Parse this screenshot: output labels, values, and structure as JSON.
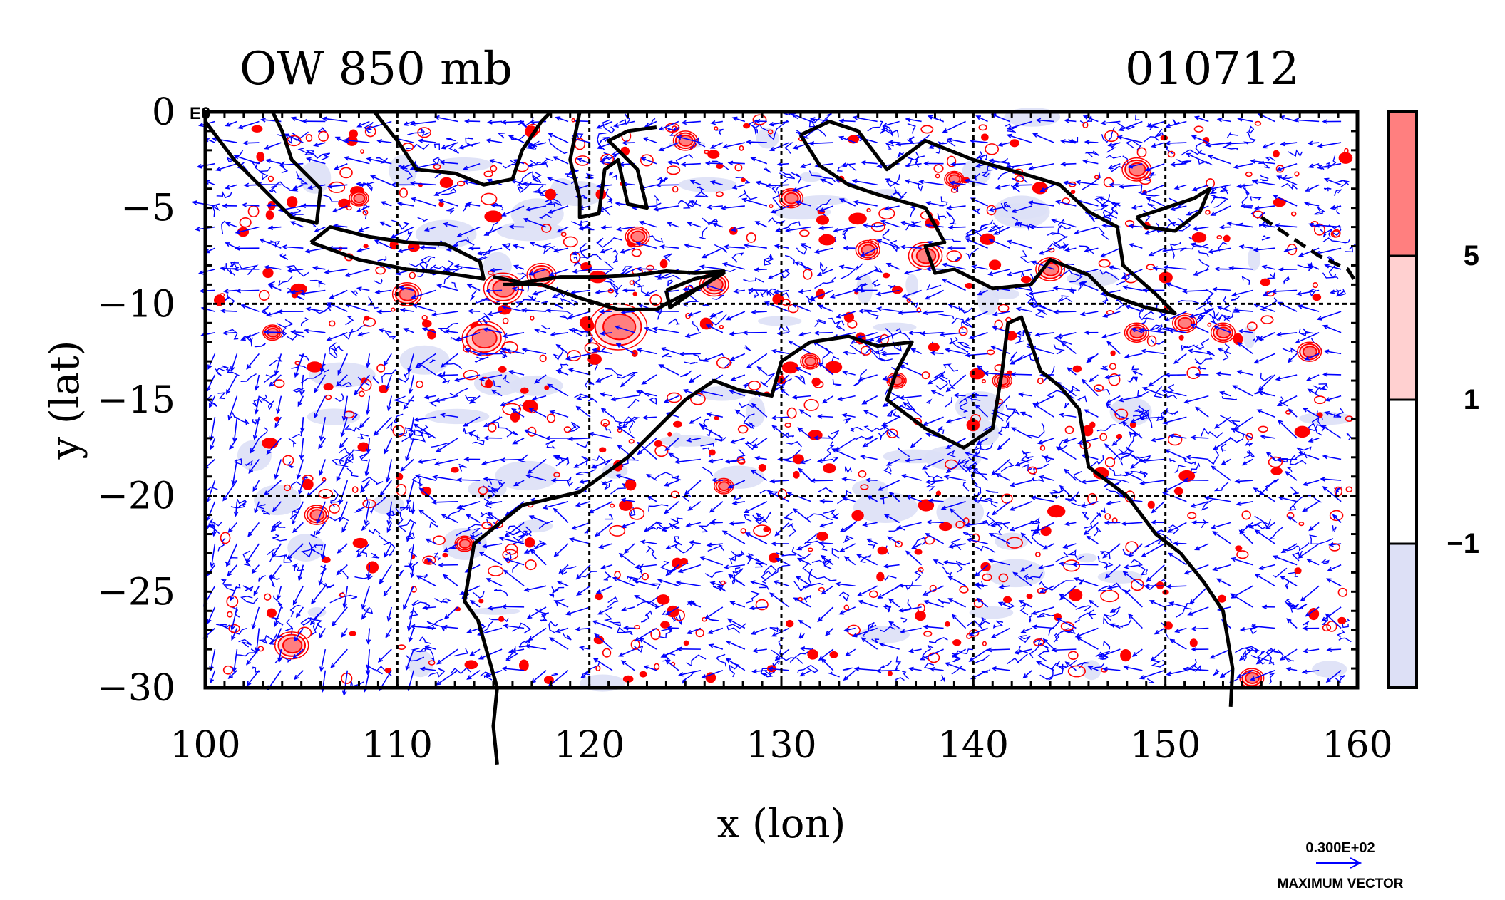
{
  "chart_data": {
    "type": "contour",
    "title_left": "OW 850 mb",
    "title_right": "010712",
    "xlabel": "x (lon)",
    "ylabel": "y (lat)",
    "xlim": [
      100,
      160
    ],
    "ylim": [
      -30,
      0
    ],
    "x_ticks": [
      "100",
      "110",
      "120",
      "130",
      "140",
      "150",
      "160"
    ],
    "y_ticks": [
      "0",
      "−5",
      "−10",
      "−15",
      "−20",
      "−25",
      "−30"
    ],
    "corner_label": "E0",
    "grid": true,
    "colorbar": {
      "bins": [
        {
          "label": "5",
          "color": "#ff7f7f"
        },
        {
          "label": "1",
          "color": "#ffd0d0"
        },
        {
          "label": "-1",
          "color": "#ffffff"
        },
        {
          "label": "",
          "color": "#dde0f6"
        }
      ],
      "tick_labels": [
        "5",
        "1",
        "−1"
      ]
    },
    "contour_colors": {
      "positive": "#ff0000",
      "negative": "#0000ff",
      "coast": "#000000"
    },
    "vector_legend": {
      "value": "0.300E+02",
      "label": "MAXIMUM VECTOR"
    },
    "positive_blobs": [
      {
        "lon": 121.5,
        "lat": -11.2,
        "r": 1.2
      },
      {
        "lon": 115.5,
        "lat": -9.2,
        "r": 0.8
      },
      {
        "lon": 110.5,
        "lat": -9.5,
        "r": 0.6
      },
      {
        "lon": 114.5,
        "lat": -11.8,
        "r": 0.9
      },
      {
        "lon": 126.5,
        "lat": -9.0,
        "r": 0.6
      },
      {
        "lon": 137.5,
        "lat": -7.5,
        "r": 0.7
      },
      {
        "lon": 148.5,
        "lat": -3.0,
        "r": 0.6
      },
      {
        "lon": 144.0,
        "lat": -8.2,
        "r": 0.6
      },
      {
        "lon": 148.5,
        "lat": -11.5,
        "r": 0.5
      },
      {
        "lon": 151.0,
        "lat": -11.0,
        "r": 0.5
      },
      {
        "lon": 153.0,
        "lat": -11.5,
        "r": 0.5
      },
      {
        "lon": 104.5,
        "lat": -27.8,
        "r": 0.7
      },
      {
        "lon": 105.8,
        "lat": -21.0,
        "r": 0.5
      },
      {
        "lon": 103.5,
        "lat": -11.5,
        "r": 0.4
      },
      {
        "lon": 134.5,
        "lat": -7.2,
        "r": 0.5
      },
      {
        "lon": 130.5,
        "lat": -4.5,
        "r": 0.5
      },
      {
        "lon": 122.5,
        "lat": -6.5,
        "r": 0.5
      },
      {
        "lon": 117.5,
        "lat": -8.5,
        "r": 0.6
      },
      {
        "lon": 108.0,
        "lat": -4.5,
        "r": 0.4
      },
      {
        "lon": 139.0,
        "lat": -3.5,
        "r": 0.4
      },
      {
        "lon": 141.5,
        "lat": -14.0,
        "r": 0.4
      },
      {
        "lon": 157.5,
        "lat": -12.5,
        "r": 0.5
      },
      {
        "lon": 113.5,
        "lat": -22.5,
        "r": 0.4
      },
      {
        "lon": 127.0,
        "lat": -19.5,
        "r": 0.4
      },
      {
        "lon": 154.5,
        "lat": -29.5,
        "r": 0.5
      },
      {
        "lon": 125.0,
        "lat": -1.5,
        "r": 0.5
      },
      {
        "lon": 131.5,
        "lat": -13.0,
        "r": 0.4
      },
      {
        "lon": 136.0,
        "lat": -14.0,
        "r": 0.4
      }
    ]
  }
}
